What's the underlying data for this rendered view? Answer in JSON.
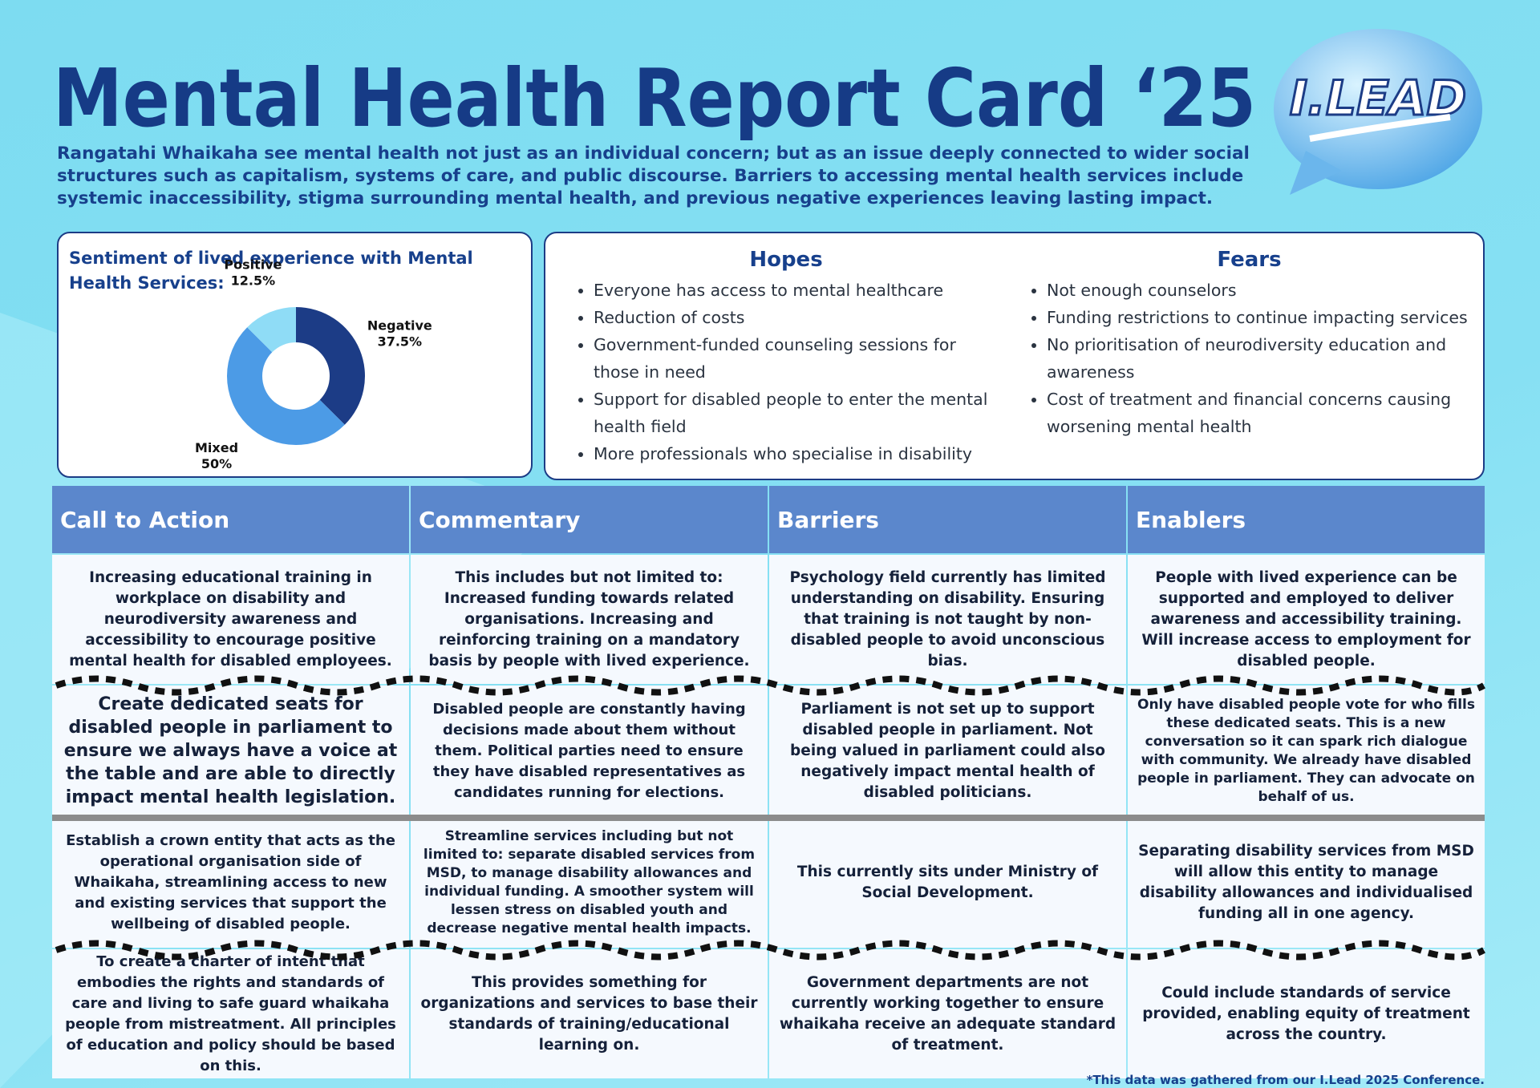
{
  "header": {
    "title": "Mental Health Report Card ‘25",
    "intro": "Rangatahi Whaikaha see mental health not just as an individual concern; but as an issue deeply connected to wider social structures such as capitalism, systems of care, and public discourse. Barriers to accessing mental health services include systemic inaccessibility, stigma surrounding mental health, and previous negative experiences leaving lasting impact.",
    "logo": "I.LEAD"
  },
  "chart_data": {
    "type": "pie",
    "donut": true,
    "title": "Sentiment of lived experience with Mental Health Services:",
    "categories": [
      "Negative",
      "Mixed",
      "Positive"
    ],
    "values": [
      37.5,
      50,
      12.5
    ],
    "value_labels": [
      "37.5%",
      "50%",
      "12.5%"
    ],
    "colors": [
      "#1c3c86",
      "#4c9be6",
      "#8fdcf6"
    ]
  },
  "hopes": {
    "title": "Hopes",
    "items": [
      "Everyone has access to mental healthcare",
      "Reduction of costs",
      "Government-funded counseling sessions for those in need",
      "Support for disabled people to enter the mental health field",
      "More professionals who specialise in disability"
    ]
  },
  "fears": {
    "title": "Fears",
    "items": [
      "Not enough counselors",
      "Funding restrictions to continue impacting services",
      "No prioritisation of neurodiversity education and awareness",
      "Cost of treatment and financial concerns causing worsening mental health"
    ]
  },
  "table": {
    "headers": [
      "Call to Action",
      "Commentary",
      "Barriers",
      "Enablers"
    ],
    "rows": [
      [
        "Increasing educational training in workplace on disability and neurodiversity awareness and accessibility to encourage positive mental health for disabled employees.",
        "This includes but not limited to: Increased funding towards related organisations. Increasing and reinforcing training on a mandatory basis by people with lived experience.",
        "Psychology field currently has limited understanding on disability. Ensuring that training is not taught by non-disabled people to avoid unconscious bias.",
        "People with lived experience can be supported and employed to deliver awareness and accessibility training. Will increase access to employment for disabled people."
      ],
      [
        "Create dedicated seats for disabled people in parliament to ensure we always have a voice at the table and are able to directly impact mental health legislation.",
        "Disabled people are constantly having decisions made about them without them. Political parties need to ensure they have disabled representatives as candidates running for elections.",
        "Parliament is not set up to support disabled people in parliament. Not being valued in parliament could also negatively impact mental health of disabled politicians.",
        "Only have disabled people vote for who fills these dedicated seats. This is a new conversation so it can spark rich dialogue with community. We already have disabled people in parliament. They can advocate on behalf of us."
      ],
      [
        "Establish a crown entity that acts as the operational organisation side of Whaikaha, streamlining access to new and existing services that support the wellbeing of disabled people.",
        "Streamline services including but not limited to: separate disabled services from MSD, to manage disability allowances and individual funding. A smoother system will lessen stress on disabled youth and decrease negative mental health impacts.",
        "This currently sits under Ministry of Social Development.",
        "Separating disability services from MSD will allow this entity to manage disability allowances and individualised funding all in one agency."
      ],
      [
        "To create a charter of intent that embodies the rights and standards of care and living to safe guard whaikaha people from mistreatment. All principles of education and policy should be based on this.",
        "This provides something for organizations and services to base their standards of training/educational learning on.",
        "Government departments are not currently working together to ensure whaikaha receive an adequate standard of treatment.",
        "Could include standards of service provided, enabling equity of treatment across the country."
      ]
    ]
  },
  "footnote": "*This data was gathered from our I.Lead 2025 Conference."
}
